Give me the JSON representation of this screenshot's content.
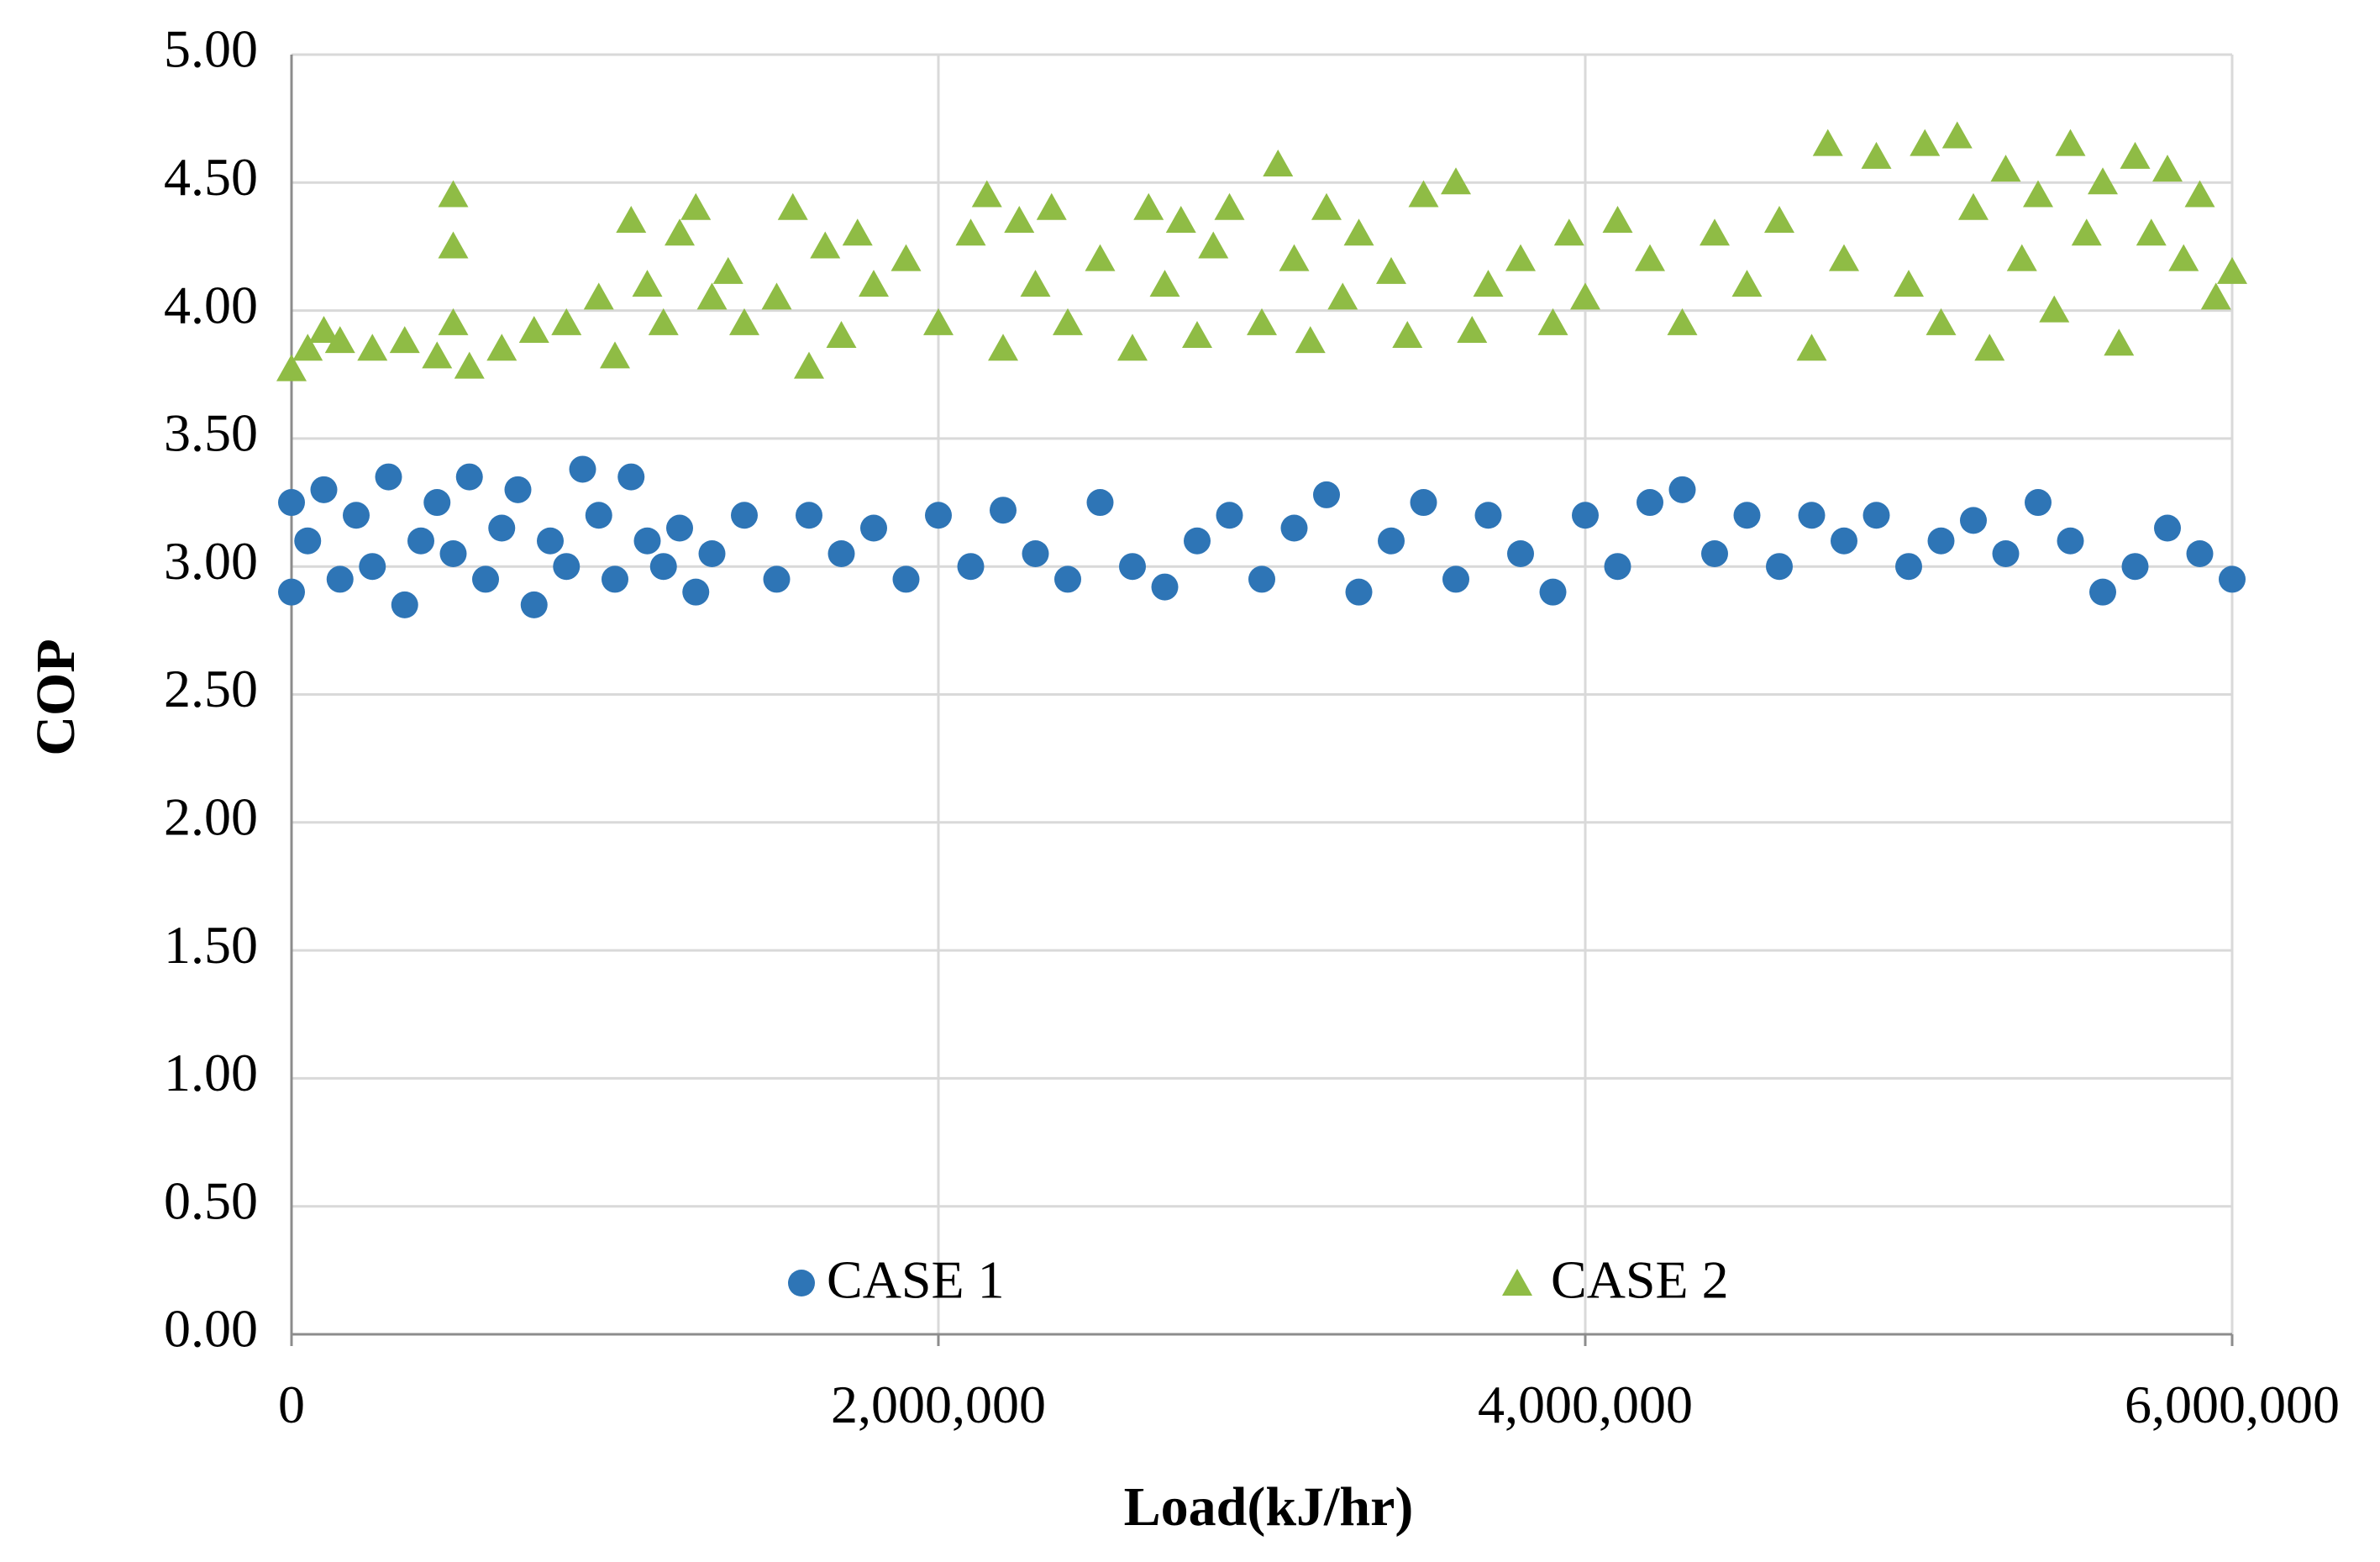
{
  "chart_data": {
    "type": "scatter",
    "title": "",
    "xlabel": "Load(kJ/hr)",
    "ylabel": "COP",
    "xlim": [
      0,
      6000000
    ],
    "ylim": [
      0,
      5
    ],
    "grid": true,
    "legend_position": "bottom-inside",
    "x_ticks": [
      0,
      2000000,
      4000000,
      6000000
    ],
    "x_tick_labels": [
      "0",
      "2,000,000",
      "4,000,000",
      "6,000,000"
    ],
    "y_ticks": [
      0,
      0.5,
      1,
      1.5,
      2,
      2.5,
      3,
      3.5,
      4,
      4.5,
      5
    ],
    "y_tick_labels": [
      "0.00",
      "0.50",
      "1.00",
      "1.50",
      "2.00",
      "2.50",
      "3.00",
      "3.50",
      "4.00",
      "4.50",
      "5.00"
    ],
    "series": [
      {
        "name": "CASE 1",
        "marker": "circle",
        "color": "#2e75b6",
        "points": [
          [
            0,
            2.9
          ],
          [
            0,
            3.25
          ],
          [
            50000,
            3.1
          ],
          [
            100000,
            3.3
          ],
          [
            150000,
            2.95
          ],
          [
            200000,
            3.2
          ],
          [
            250000,
            3.0
          ],
          [
            300000,
            3.35
          ],
          [
            350000,
            2.85
          ],
          [
            400000,
            3.1
          ],
          [
            450000,
            3.25
          ],
          [
            500000,
            3.05
          ],
          [
            550000,
            3.35
          ],
          [
            600000,
            2.95
          ],
          [
            650000,
            3.15
          ],
          [
            700000,
            3.3
          ],
          [
            750000,
            2.85
          ],
          [
            800000,
            3.1
          ],
          [
            850000,
            3.0
          ],
          [
            900000,
            3.38
          ],
          [
            950000,
            3.2
          ],
          [
            1000000,
            2.95
          ],
          [
            1050000,
            3.35
          ],
          [
            1100000,
            3.1
          ],
          [
            1150000,
            3.0
          ],
          [
            1200000,
            3.15
          ],
          [
            1250000,
            2.9
          ],
          [
            1300000,
            3.05
          ],
          [
            1400000,
            3.2
          ],
          [
            1500000,
            2.95
          ],
          [
            1600000,
            3.2
          ],
          [
            1700000,
            3.05
          ],
          [
            1800000,
            3.15
          ],
          [
            1900000,
            2.95
          ],
          [
            2000000,
            3.2
          ],
          [
            2100000,
            3.0
          ],
          [
            2200000,
            3.22
          ],
          [
            2300000,
            3.05
          ],
          [
            2400000,
            2.95
          ],
          [
            2500000,
            3.25
          ],
          [
            2600000,
            3.0
          ],
          [
            2700000,
            2.92
          ],
          [
            2800000,
            3.1
          ],
          [
            2900000,
            3.2
          ],
          [
            3000000,
            2.95
          ],
          [
            3100000,
            3.15
          ],
          [
            3200000,
            3.28
          ],
          [
            3300000,
            2.9
          ],
          [
            3400000,
            3.1
          ],
          [
            3500000,
            3.25
          ],
          [
            3600000,
            2.95
          ],
          [
            3700000,
            3.2
          ],
          [
            3800000,
            3.05
          ],
          [
            3900000,
            2.9
          ],
          [
            4000000,
            3.2
          ],
          [
            4100000,
            3.0
          ],
          [
            4200000,
            3.25
          ],
          [
            4300000,
            3.3
          ],
          [
            4400000,
            3.05
          ],
          [
            4500000,
            3.2
          ],
          [
            4600000,
            3.0
          ],
          [
            4700000,
            3.2
          ],
          [
            4800000,
            3.1
          ],
          [
            4900000,
            3.2
          ],
          [
            5000000,
            3.0
          ],
          [
            5100000,
            3.1
          ],
          [
            5200000,
            3.18
          ],
          [
            5300000,
            3.05
          ],
          [
            5400000,
            3.25
          ],
          [
            5500000,
            3.1
          ],
          [
            5600000,
            2.9
          ],
          [
            5700000,
            3.0
          ],
          [
            5800000,
            3.15
          ],
          [
            5900000,
            3.05
          ],
          [
            6000000,
            2.95
          ]
        ]
      },
      {
        "name": "CASE 2",
        "marker": "triangle",
        "color": "#8fbc45",
        "points": [
          [
            0,
            3.77
          ],
          [
            50000,
            3.85
          ],
          [
            100000,
            3.92
          ],
          [
            150000,
            3.88
          ],
          [
            250000,
            3.85
          ],
          [
            350000,
            3.88
          ],
          [
            450000,
            3.82
          ],
          [
            500000,
            4.25
          ],
          [
            500000,
            4.45
          ],
          [
            500000,
            3.95
          ],
          [
            550000,
            3.78
          ],
          [
            650000,
            3.85
          ],
          [
            750000,
            3.92
          ],
          [
            850000,
            3.95
          ],
          [
            950000,
            4.05
          ],
          [
            1000000,
            3.82
          ],
          [
            1050000,
            4.35
          ],
          [
            1100000,
            4.1
          ],
          [
            1150000,
            3.95
          ],
          [
            1200000,
            4.3
          ],
          [
            1250000,
            4.4
          ],
          [
            1300000,
            4.05
          ],
          [
            1350000,
            4.15
          ],
          [
            1400000,
            3.95
          ],
          [
            1500000,
            4.05
          ],
          [
            1550000,
            4.4
          ],
          [
            1600000,
            3.78
          ],
          [
            1650000,
            4.25
          ],
          [
            1700000,
            3.9
          ],
          [
            1750000,
            4.3
          ],
          [
            1800000,
            4.1
          ],
          [
            1900000,
            4.2
          ],
          [
            2000000,
            3.95
          ],
          [
            2100000,
            4.3
          ],
          [
            2150000,
            4.45
          ],
          [
            2200000,
            3.85
          ],
          [
            2250000,
            4.35
          ],
          [
            2300000,
            4.1
          ],
          [
            2350000,
            4.4
          ],
          [
            2400000,
            3.95
          ],
          [
            2500000,
            4.2
          ],
          [
            2600000,
            3.85
          ],
          [
            2650000,
            4.4
          ],
          [
            2700000,
            4.1
          ],
          [
            2750000,
            4.35
          ],
          [
            2800000,
            3.9
          ],
          [
            2850000,
            4.25
          ],
          [
            2900000,
            4.4
          ],
          [
            3000000,
            3.95
          ],
          [
            3050000,
            4.57
          ],
          [
            3100000,
            4.2
          ],
          [
            3150000,
            3.88
          ],
          [
            3200000,
            4.4
          ],
          [
            3250000,
            4.05
          ],
          [
            3300000,
            4.3
          ],
          [
            3400000,
            4.15
          ],
          [
            3450000,
            3.9
          ],
          [
            3500000,
            4.45
          ],
          [
            3600000,
            4.5
          ],
          [
            3650000,
            3.92
          ],
          [
            3700000,
            4.1
          ],
          [
            3800000,
            4.2
          ],
          [
            3900000,
            3.95
          ],
          [
            3950000,
            4.3
          ],
          [
            4000000,
            4.05
          ],
          [
            4100000,
            4.35
          ],
          [
            4200000,
            4.2
          ],
          [
            4300000,
            3.95
          ],
          [
            4400000,
            4.3
          ],
          [
            4500000,
            4.1
          ],
          [
            4600000,
            4.35
          ],
          [
            4700000,
            3.85
          ],
          [
            4750000,
            4.65
          ],
          [
            4800000,
            4.2
          ],
          [
            4900000,
            4.6
          ],
          [
            5000000,
            4.1
          ],
          [
            5050000,
            4.65
          ],
          [
            5100000,
            3.95
          ],
          [
            5150000,
            4.68
          ],
          [
            5200000,
            4.4
          ],
          [
            5250000,
            3.85
          ],
          [
            5300000,
            4.55
          ],
          [
            5350000,
            4.2
          ],
          [
            5400000,
            4.45
          ],
          [
            5450000,
            4.0
          ],
          [
            5500000,
            4.65
          ],
          [
            5550000,
            4.3
          ],
          [
            5600000,
            4.5
          ],
          [
            5650000,
            3.87
          ],
          [
            5700000,
            4.6
          ],
          [
            5750000,
            4.3
          ],
          [
            5800000,
            4.55
          ],
          [
            5850000,
            4.2
          ],
          [
            5900000,
            4.45
          ],
          [
            5950000,
            4.05
          ],
          [
            6000000,
            4.15
          ]
        ]
      }
    ]
  }
}
